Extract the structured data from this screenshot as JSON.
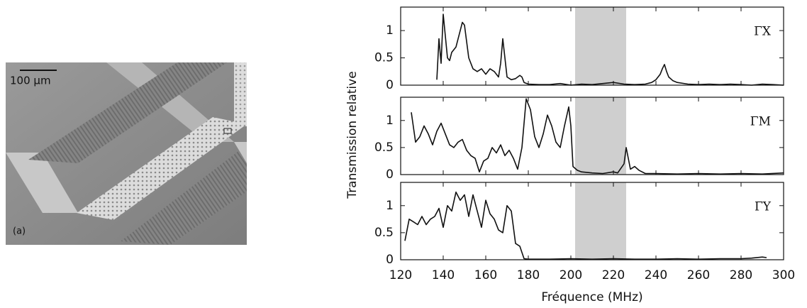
{
  "image": {
    "scale_label": "100 µm",
    "panel_label": "(a)"
  },
  "chart_data": [
    {
      "type": "line",
      "xlim": [
        120,
        300
      ],
      "ylim": [
        0,
        1.43
      ],
      "yticks": [
        0,
        0.5,
        1
      ],
      "band": [
        202,
        226
      ],
      "band_color": "#cfcfcf",
      "series": [
        {
          "name": "ΓX",
          "color": "#111111",
          "x": [
            137,
            138,
            139,
            140,
            141,
            142,
            143,
            144,
            146,
            148,
            149,
            150,
            151,
            152,
            154,
            156,
            158,
            160,
            162,
            164,
            166,
            167,
            168,
            169,
            170,
            172,
            174,
            176,
            177,
            178,
            180,
            185,
            190,
            195,
            200,
            205,
            210,
            215,
            220,
            225,
            230,
            235,
            238,
            240,
            242,
            243,
            244,
            245,
            246,
            248,
            250,
            255,
            260,
            265,
            270,
            275,
            280,
            285,
            290,
            295,
            300
          ],
          "values": [
            0.1,
            0.85,
            0.4,
            1.3,
            0.9,
            0.5,
            0.45,
            0.6,
            0.7,
            1.0,
            1.15,
            1.1,
            0.8,
            0.5,
            0.3,
            0.25,
            0.3,
            0.2,
            0.3,
            0.25,
            0.15,
            0.4,
            0.85,
            0.5,
            0.15,
            0.1,
            0.12,
            0.18,
            0.15,
            0.05,
            0.02,
            0.01,
            0.01,
            0.03,
            0.0,
            0.02,
            0.01,
            0.03,
            0.05,
            0.02,
            0.01,
            0.02,
            0.05,
            0.1,
            0.2,
            0.3,
            0.38,
            0.25,
            0.15,
            0.08,
            0.05,
            0.02,
            0.01,
            0.02,
            0.01,
            0.02,
            0.01,
            0.0,
            0.02,
            0.01,
            0.0
          ]
        }
      ]
    },
    {
      "type": "line",
      "xlim": [
        120,
        300
      ],
      "ylim": [
        0,
        1.43
      ],
      "yticks": [
        0,
        0.5,
        1
      ],
      "band": [
        202,
        226
      ],
      "band_color": "#cfcfcf",
      "ylabel": "Transmission relative",
      "series": [
        {
          "name": "ΓM",
          "color": "#111111",
          "x": [
            125,
            127,
            129,
            131,
            133,
            135,
            137,
            139,
            141,
            143,
            145,
            147,
            149,
            151,
            153,
            155,
            157,
            159,
            161,
            163,
            165,
            167,
            169,
            171,
            173,
            175,
            177,
            179,
            181,
            183,
            185,
            187,
            189,
            191,
            193,
            195,
            197,
            199,
            200,
            201,
            203,
            205,
            210,
            215,
            220,
            222,
            225,
            226,
            227,
            228,
            230,
            232,
            235,
            240,
            250,
            260,
            270,
            280,
            290,
            300
          ],
          "values": [
            1.15,
            0.6,
            0.7,
            0.9,
            0.75,
            0.55,
            0.8,
            0.95,
            0.75,
            0.55,
            0.5,
            0.6,
            0.65,
            0.45,
            0.35,
            0.3,
            0.05,
            0.25,
            0.3,
            0.5,
            0.4,
            0.55,
            0.35,
            0.45,
            0.3,
            0.1,
            0.5,
            1.4,
            1.2,
            0.7,
            0.5,
            0.75,
            1.1,
            0.9,
            0.6,
            0.5,
            0.9,
            1.25,
            0.9,
            0.15,
            0.08,
            0.05,
            0.03,
            0.02,
            0.05,
            0.03,
            0.2,
            0.5,
            0.3,
            0.1,
            0.15,
            0.08,
            0.02,
            0.02,
            0.01,
            0.02,
            0.01,
            0.02,
            0.01,
            0.03
          ]
        }
      ]
    },
    {
      "type": "line",
      "xlim": [
        120,
        300
      ],
      "ylim": [
        0,
        1.43
      ],
      "yticks": [
        0,
        0.5,
        1
      ],
      "xticks": [
        120,
        140,
        160,
        180,
        200,
        220,
        240,
        260,
        280,
        300
      ],
      "band": [
        202,
        226
      ],
      "band_color": "#cfcfcf",
      "xlabel": "Fréquence (MHz)",
      "series": [
        {
          "name": "ΓY",
          "color": "#111111",
          "x": [
            122,
            124,
            126,
            128,
            130,
            132,
            134,
            136,
            138,
            140,
            142,
            144,
            146,
            148,
            150,
            152,
            154,
            156,
            158,
            160,
            162,
            164,
            166,
            168,
            170,
            172,
            174,
            176,
            178,
            180,
            190,
            200,
            210,
            220,
            230,
            240,
            250,
            260,
            270,
            280,
            285,
            290,
            292
          ],
          "values": [
            0.35,
            0.75,
            0.7,
            0.65,
            0.8,
            0.65,
            0.75,
            0.8,
            0.95,
            0.6,
            1.0,
            0.9,
            1.25,
            1.1,
            1.2,
            0.8,
            1.2,
            0.9,
            0.6,
            1.1,
            0.85,
            0.75,
            0.55,
            0.5,
            1.0,
            0.9,
            0.3,
            0.25,
            0.02,
            0.01,
            0.01,
            0.02,
            0.01,
            0.02,
            0.01,
            0.01,
            0.02,
            0.01,
            0.02,
            0.02,
            0.03,
            0.05,
            0.04
          ]
        }
      ]
    }
  ]
}
